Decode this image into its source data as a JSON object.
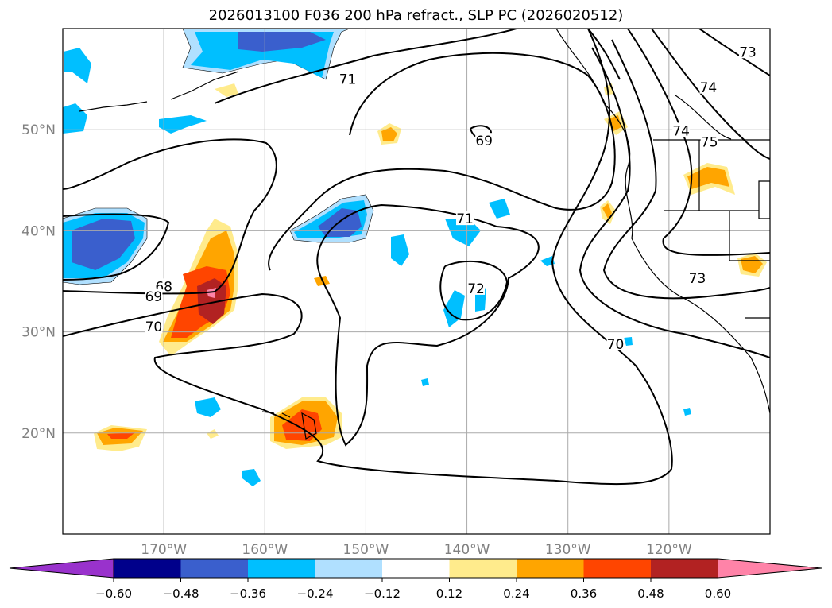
{
  "title": "2026013100 F036 200 hPa refract., SLP PC (2026020512)",
  "chart_data": {
    "type": "heatmap",
    "subtype": "map with filled contours and line contours",
    "title": "2026013100 F036 200 hPa refract., SLP PC (2026020512)",
    "lon_range": [
      -180,
      -110
    ],
    "lat_range": [
      10,
      60
    ],
    "grid": true,
    "x_ticks": [
      {
        "lon": -170,
        "label": "170°W"
      },
      {
        "lon": -160,
        "label": "160°W"
      },
      {
        "lon": -150,
        "label": "150°W"
      },
      {
        "lon": -140,
        "label": "140°W"
      },
      {
        "lon": -130,
        "label": "130°W"
      },
      {
        "lon": -120,
        "label": "120°W"
      }
    ],
    "y_ticks": [
      {
        "lat": 50,
        "label": "50N"
      },
      {
        "lat": 40,
        "label": "40N"
      },
      {
        "lat": 30,
        "label": "30N"
      },
      {
        "lat": 20,
        "label": "20N"
      }
    ],
    "y_tick_suffix": "°",
    "contour_labels": [
      {
        "text": "68",
        "lon": -170.0,
        "lat": 34.5
      },
      {
        "text": "69",
        "lon": -171.0,
        "lat": 33.5
      },
      {
        "text": "70",
        "lon": -171.0,
        "lat": 30.5
      },
      {
        "text": "71",
        "lon": -151.8,
        "lat": 55.0
      },
      {
        "text": "69",
        "lon": -138.3,
        "lat": 48.9
      },
      {
        "text": "71",
        "lon": -140.2,
        "lat": 41.2
      },
      {
        "text": "72",
        "lon": -139.1,
        "lat": 34.3
      },
      {
        "text": "70",
        "lon": -125.3,
        "lat": 28.8
      },
      {
        "text": "73",
        "lon": -117.2,
        "lat": 35.3
      },
      {
        "text": "74",
        "lon": -116.1,
        "lat": 54.2
      },
      {
        "text": "74",
        "lon": -118.8,
        "lat": 49.9
      },
      {
        "text": "75",
        "lon": -116.0,
        "lat": 48.8
      },
      {
        "text": "73",
        "lon": -112.2,
        "lat": 57.7
      }
    ],
    "colorbar": {
      "extend": "both",
      "boundaries": [
        -0.6,
        -0.48,
        -0.36,
        -0.24,
        -0.12,
        0.12,
        0.24,
        0.36,
        0.48,
        0.6
      ],
      "tick_labels": [
        "−0.60",
        "−0.48",
        "−0.36",
        "−0.24",
        "−0.12",
        "0.12",
        "0.24",
        "0.36",
        "0.48",
        "0.60"
      ],
      "colors": [
        "#9932cc",
        "#00008b",
        "#3a5fcd",
        "#00bfff",
        "#b0e0ff",
        "#ffffff",
        "#ffeb8c",
        "#ffa500",
        "#ff4500",
        "#b22222",
        "#ff83a8"
      ]
    }
  }
}
